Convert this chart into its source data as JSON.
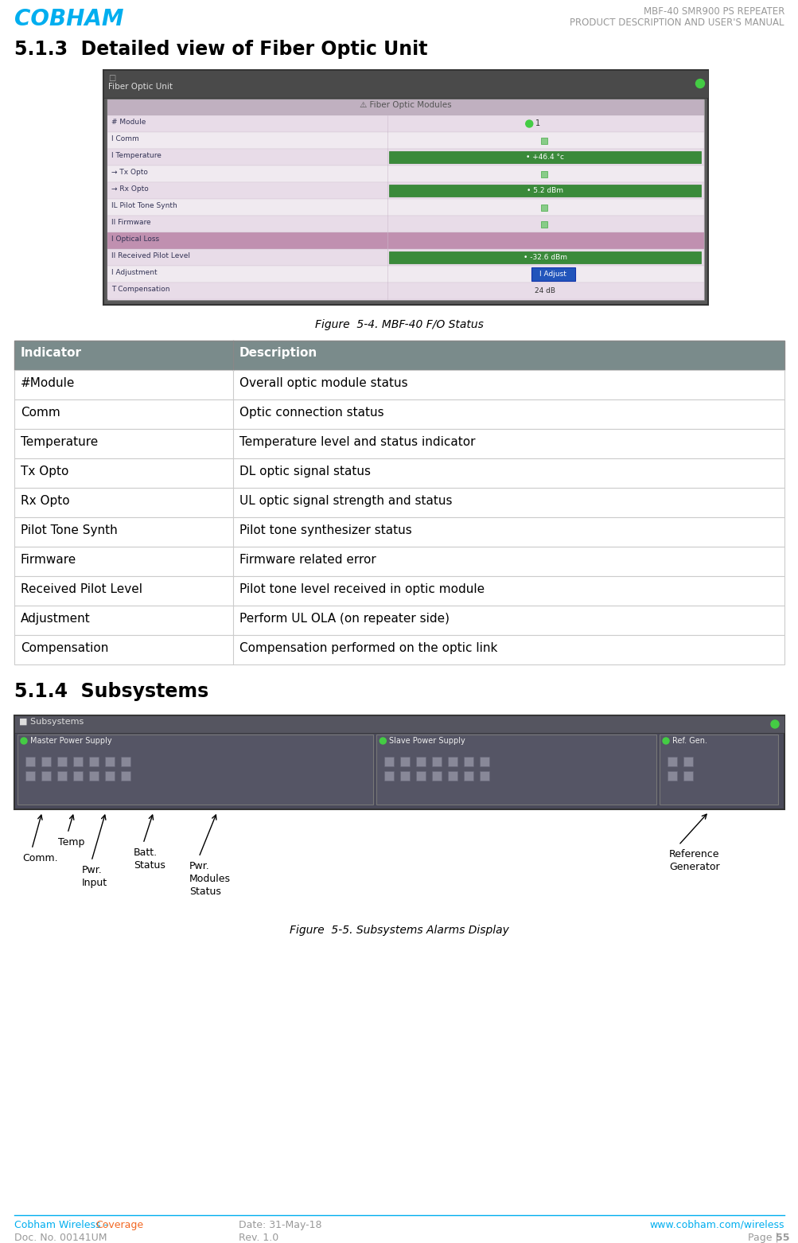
{
  "header_title1": "MBF-40 SMR900 PS REPEATER",
  "header_title2": "PRODUCT DESCRIPTION AND USER'S MANUAL",
  "section_513": "5.1.3  Detailed view of Fiber Optic Unit",
  "figure_54_caption": "Figure  5-4. MBF-40 F/O Status",
  "table_header": [
    "Indicator",
    "Description"
  ],
  "table_rows": [
    [
      "#Module",
      "Overall optic module status"
    ],
    [
      "Comm",
      "Optic connection status"
    ],
    [
      "Temperature",
      "Temperature level and status indicator"
    ],
    [
      "Tx Opto",
      "DL optic signal status"
    ],
    [
      "Rx Opto",
      "UL optic signal strength and status"
    ],
    [
      "Pilot Tone Synth",
      "Pilot tone synthesizer status"
    ],
    [
      "Firmware",
      "Firmware related error"
    ],
    [
      "Received Pilot Level",
      "Pilot tone level received in optic module"
    ],
    [
      "Adjustment",
      "Perform UL OLA (on repeater side)"
    ],
    [
      "Compensation",
      "Compensation performed on the optic link"
    ]
  ],
  "section_514": "5.1.4  Subsystems",
  "figure_55_caption": "Figure  5-5. Subsystems Alarms Display",
  "footer_left_blue": "Cobham Wireless – ",
  "footer_left_orange": "Coverage",
  "footer_left2": "Doc. No. 00141UM",
  "footer_center1": "Date: 31-May-18",
  "footer_center2": "Rev. 1.0",
  "footer_right1": "www.cobham.com/wireless",
  "footer_right2": "Page | 55",
  "cobham_blue": "#00AEEF",
  "cobham_orange": "#F26722",
  "header_gray": "#999999",
  "table_header_bg": "#7A8B8B",
  "table_border_color": "#CCCCCC",
  "table_row_bg": "#FFFFFF",
  "footer_line_color": "#00AEEF",
  "fig_bg": "#FFFFFF",
  "screenshot_outer_bg": "#5A5A5A",
  "screenshot_title_bar": "#4A4A4A",
  "screenshot_row_light": "#EEE8EE",
  "screenshot_row_lighter": "#F5F0F5",
  "screenshot_green_bar": "#3A8A3A",
  "screenshot_pink_highlight": "#C8A0C0",
  "screenshot_header_bar": "#C0B0C0",
  "screenshot_blue_btn": "#2255BB"
}
